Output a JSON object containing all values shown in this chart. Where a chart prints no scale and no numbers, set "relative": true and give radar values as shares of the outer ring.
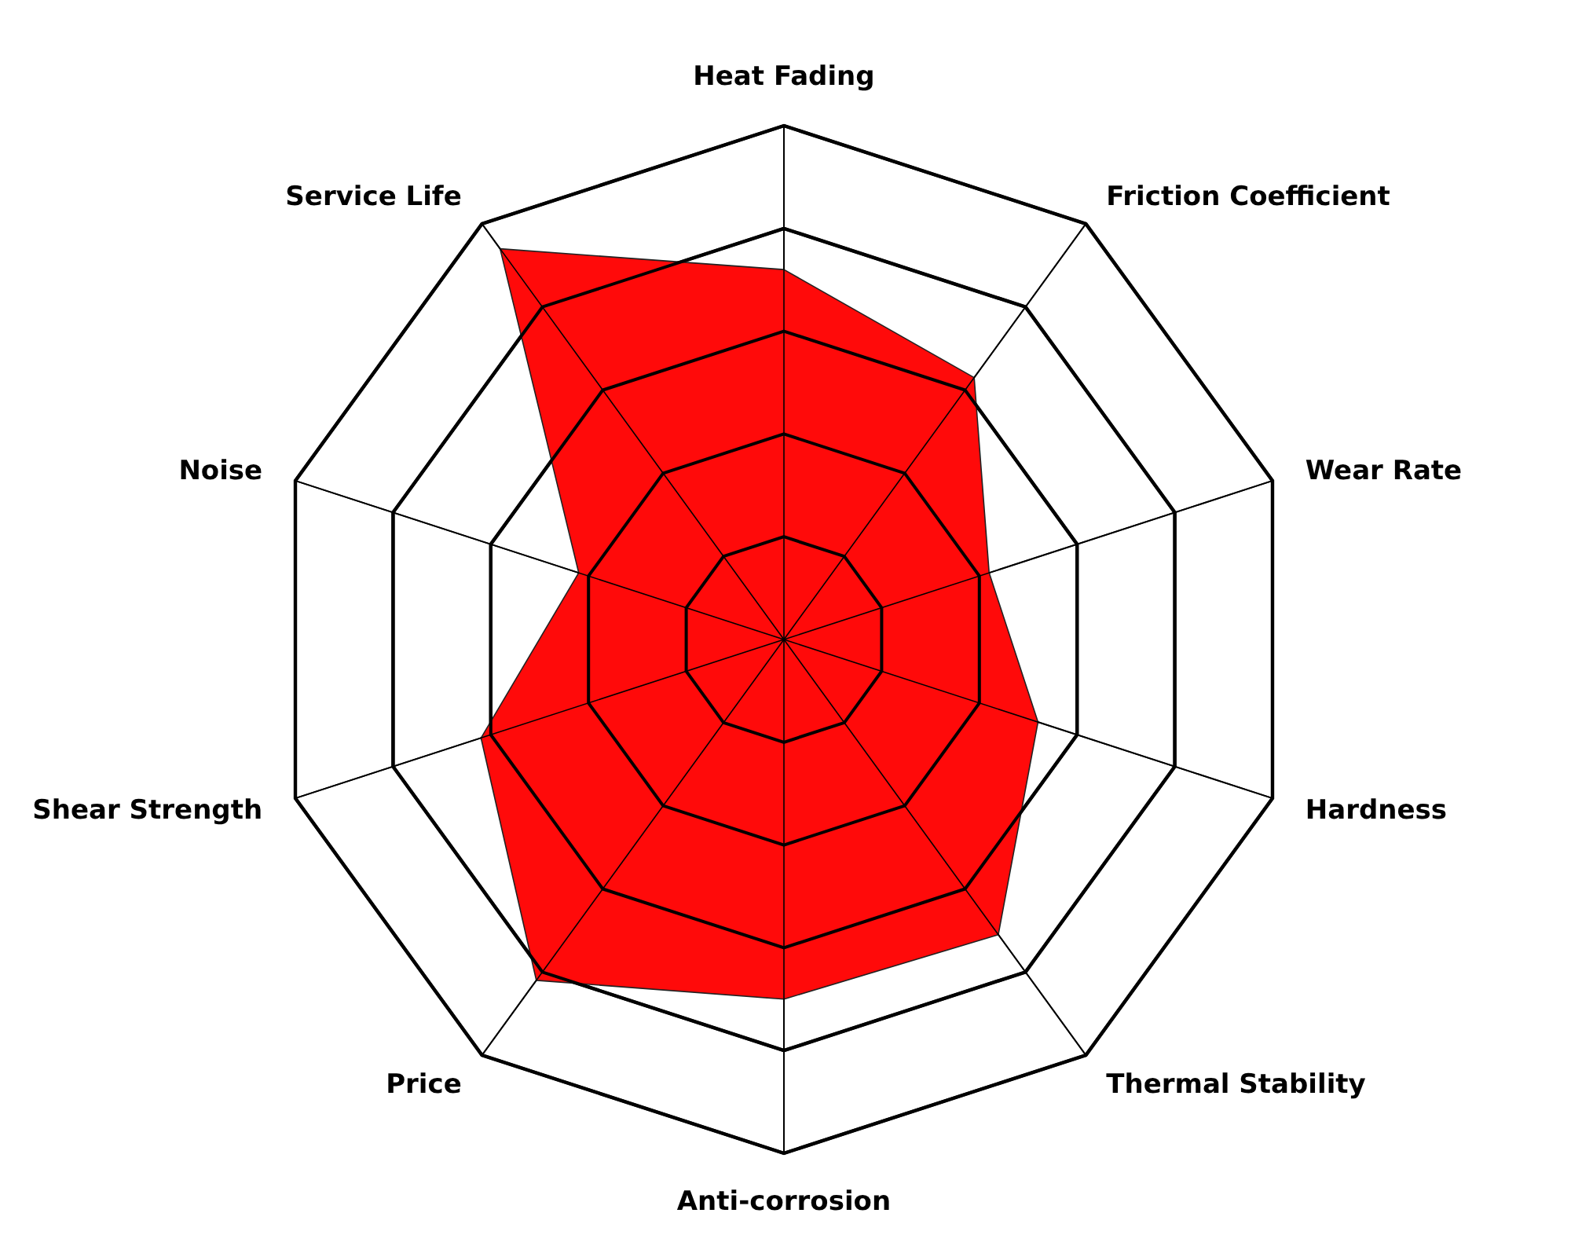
{
  "chart_data": {
    "type": "radar",
    "relative": true,
    "grid": true,
    "categories": [
      "Heat Fading",
      "Friction Coefficient",
      "Wear Rate",
      "Hardness",
      "Thermal Stability",
      "Anti-corrosion",
      "Price",
      "Shear Strength",
      "Noise",
      "Service Life"
    ],
    "series": [
      {
        "color": "#ff0a0a",
        "values": [
          0.72,
          0.63,
          0.42,
          0.52,
          0.71,
          0.7,
          0.82,
          0.62,
          0.42,
          0.94
        ]
      }
    ]
  }
}
